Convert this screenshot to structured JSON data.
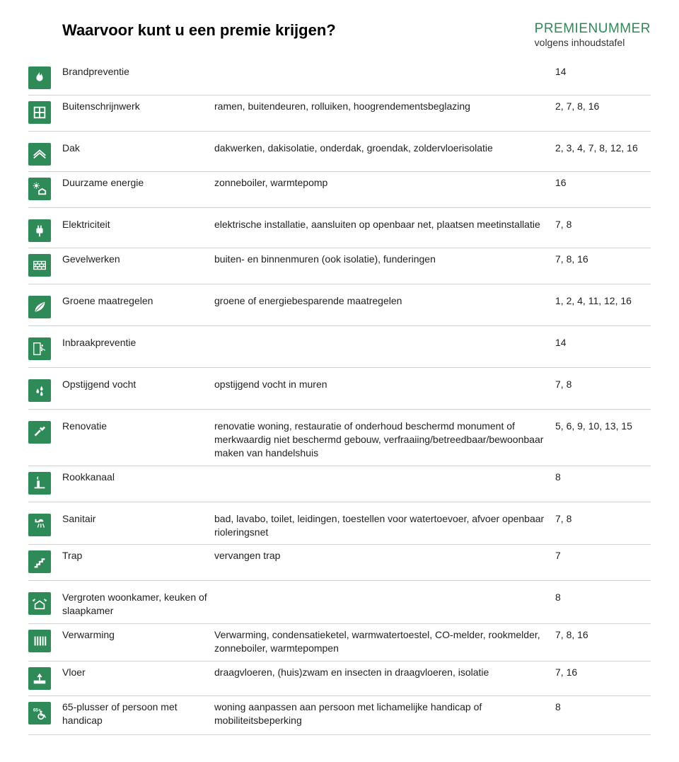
{
  "header": {
    "title": "Waarvoor kunt u een premie krijgen?",
    "premienummer": "PREMIENUMMER",
    "premienummer_sub": "volgens inhoudstafel"
  },
  "colors": {
    "icon_bg": "#2e8b57",
    "icon_fg": "#ffffff",
    "heading": "#2e8b57",
    "text": "#222222",
    "rule": "#d0d0d0"
  },
  "sections": [
    {
      "rows": [
        {
          "icon": "flame",
          "category": "Brandpreventie",
          "desc": "",
          "num": "14"
        },
        {
          "icon": "window",
          "category": "Buitenschrijnwerk",
          "desc": "ramen, buitendeuren, rolluiken, hoogrendementsbeglazing",
          "num": "2, 7, 8, 16"
        }
      ]
    },
    {
      "rows": [
        {
          "icon": "roof",
          "category": "Dak",
          "desc": "dakwerken, dakisolatie, onderdak, groendak, zoldervloerisolatie",
          "num": "2, 3, 4, 7, 8, 12, 16"
        },
        {
          "icon": "sun-house",
          "category": "Duurzame energie",
          "desc": "zonneboiler, warmtepomp",
          "num": "16"
        }
      ]
    },
    {
      "rows": [
        {
          "icon": "plug",
          "category": "Elektriciteit",
          "desc": "elektrische installatie, aansluiten op openbaar net, plaatsen meetinstallatie",
          "num": "7, 8"
        },
        {
          "icon": "bricks",
          "category": "Gevelwerken",
          "desc": "buiten- en binnenmuren (ook isolatie), funderingen",
          "num": "7, 8, 16"
        }
      ]
    },
    {
      "rows": [
        {
          "icon": "leaf",
          "category": "Groene maatregelen",
          "desc": "groene of energiebesparende maatregelen",
          "num": "1, 2, 4, 11, 12, 16"
        }
      ]
    },
    {
      "rows": [
        {
          "icon": "exit",
          "category": "Inbraakpreventie",
          "desc": "",
          "num": "14"
        }
      ]
    },
    {
      "rows": [
        {
          "icon": "drops",
          "category": "Opstijgend vocht",
          "desc": "opstijgend vocht in muren",
          "num": "7, 8"
        }
      ]
    },
    {
      "rows": [
        {
          "icon": "hammer",
          "category": "Renovatie",
          "desc": "renovatie woning, restauratie of onderhoud beschermd monument of merkwaardig niet beschermd gebouw, verfraaiing/betreedbaar/bewoonbaar maken van handelshuis",
          "num": "5, 6, 9, 10, 13, 15"
        },
        {
          "icon": "chimney",
          "category": "Rookkanaal",
          "desc": "",
          "num": "8"
        }
      ]
    },
    {
      "rows": [
        {
          "icon": "shower",
          "category": "Sanitair",
          "desc": "bad, lavabo, toilet, leidingen, toestellen voor watertoevoer, afvoer openbaar rioleringsnet",
          "num": "7, 8"
        },
        {
          "icon": "stairs",
          "category": "Trap",
          "desc": "vervangen trap",
          "num": "7"
        }
      ]
    },
    {
      "rows": [
        {
          "icon": "house-expand",
          "category": "Vergroten woonkamer, keuken of slaapkamer",
          "desc": "",
          "num": "8"
        },
        {
          "icon": "radiator",
          "category": "Verwarming",
          "desc": "Verwarming, condensatieketel, warmwatertoestel, CO-melder, rookmelder, zonneboiler, warmtepompen",
          "num": "7, 8, 16"
        },
        {
          "icon": "floor",
          "category": "Vloer",
          "desc": "draagvloeren, (huis)zwam en insecten in draagvloeren, isolatie",
          "num": "7, 16"
        },
        {
          "icon": "wheelchair",
          "category": "65-plusser of persoon met handicap",
          "desc": "woning aanpassen aan persoon met lichamelijke handicap of mobiliteitsbeperking",
          "num": "8"
        }
      ]
    }
  ]
}
